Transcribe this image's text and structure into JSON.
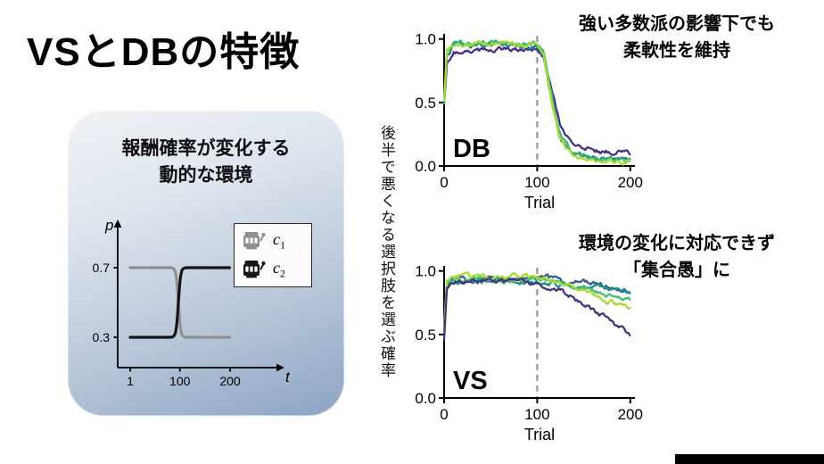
{
  "title": "VSとDBの特徴",
  "env_box": {
    "line1": "報酬確率が変化する",
    "line2": "動的な環境"
  },
  "vertical_axis_label": "後半で悪くなる選択肢を選ぶ確率",
  "annotations": {
    "db_line1": "強い多数派の影響下でも",
    "db_line2": "柔軟性を維持",
    "vs_line1": "環境の変化に対応できず",
    "vs_line2": "「集合愚」に"
  },
  "chart_data": [
    {
      "id": "reward-schedule",
      "type": "line",
      "title": "報酬確率が変化する動的な環境",
      "xlabel": "t",
      "ylabel": "p",
      "xticks": [
        1,
        100,
        200
      ],
      "yticks": [
        0.3,
        0.7
      ],
      "xlim": [
        1,
        200
      ],
      "ylim": [
        0.1,
        0.9
      ],
      "change_point": 100,
      "grid": false,
      "legend_position": "upper right",
      "legend": [
        {
          "base": "c",
          "sub": "1",
          "color": "#8f8f8f",
          "icon": "slot-machine-icon"
        },
        {
          "base": "c",
          "sub": "2",
          "color": "#161616",
          "icon": "slot-machine-icon"
        }
      ],
      "series": [
        {
          "name": "c1",
          "color": "#909090",
          "p_before": 0.7,
          "p_after": 0.3
        },
        {
          "name": "c2",
          "color": "#141414",
          "p_before": 0.3,
          "p_after": 0.7
        }
      ]
    },
    {
      "id": "db",
      "type": "line",
      "panel_label": "DB",
      "xlabel": "Trial",
      "xticks": [
        0,
        100,
        200
      ],
      "yticks": [
        0,
        0.5,
        1
      ],
      "xlim": [
        0,
        205
      ],
      "ylim": [
        0,
        1.04
      ],
      "vline_x": 100,
      "grid": false,
      "annotation": "強い多数派の影響下でも柔軟性を維持",
      "series": [
        {
          "name": "db-run-purple",
          "color": "#46327e",
          "x": [
            0,
            3,
            10,
            50,
            100,
            107,
            115,
            125,
            140,
            160,
            200
          ],
          "y": [
            0.5,
            0.8,
            0.9,
            0.92,
            0.92,
            0.86,
            0.6,
            0.3,
            0.15,
            0.12,
            0.1
          ]
        },
        {
          "name": "db-run-teal",
          "color": "#2a788e",
          "x": [
            0,
            3,
            10,
            50,
            100,
            107,
            115,
            125,
            140,
            160,
            200
          ],
          "y": [
            0.55,
            0.87,
            0.94,
            0.95,
            0.95,
            0.88,
            0.55,
            0.22,
            0.08,
            0.06,
            0.05
          ]
        },
        {
          "name": "db-run-green",
          "color": "#35b779",
          "x": [
            0,
            3,
            10,
            50,
            100,
            107,
            115,
            125,
            140,
            160,
            200
          ],
          "y": [
            0.48,
            0.9,
            0.96,
            0.97,
            0.96,
            0.9,
            0.58,
            0.25,
            0.09,
            0.06,
            0.05
          ]
        },
        {
          "name": "db-run-lime",
          "color": "#a5db36",
          "x": [
            0,
            3,
            10,
            50,
            100,
            107,
            115,
            125,
            140,
            160,
            200
          ],
          "y": [
            0.52,
            0.92,
            0.95,
            0.96,
            0.96,
            0.89,
            0.52,
            0.2,
            0.07,
            0.05,
            0.04
          ]
        }
      ]
    },
    {
      "id": "vs",
      "type": "line",
      "panel_label": "VS",
      "xlabel": "Trial",
      "xticks": [
        0,
        100,
        200
      ],
      "yticks": [
        0,
        0.5,
        1
      ],
      "xlim": [
        0,
        205
      ],
      "ylim": [
        0,
        1.04
      ],
      "vline_x": 100,
      "grid": false,
      "annotation": "環境の変化に対応できず「集合愚」に",
      "series": [
        {
          "name": "vs-run-blue",
          "color": "#365c8d",
          "x": [
            0,
            3,
            10,
            50,
            100,
            125,
            150,
            175,
            200
          ],
          "y": [
            0.6,
            0.88,
            0.93,
            0.94,
            0.95,
            0.93,
            0.91,
            0.88,
            0.84
          ]
        },
        {
          "name": "vs-run-teal",
          "color": "#21918c",
          "x": [
            0,
            3,
            10,
            50,
            100,
            125,
            150,
            175,
            200
          ],
          "y": [
            0.55,
            0.85,
            0.9,
            0.91,
            0.92,
            0.9,
            0.88,
            0.86,
            0.85
          ]
        },
        {
          "name": "vs-run-green",
          "color": "#44bf70",
          "x": [
            0,
            3,
            10,
            50,
            100,
            125,
            150,
            175,
            200
          ],
          "y": [
            0.5,
            0.9,
            0.92,
            0.93,
            0.93,
            0.9,
            0.86,
            0.81,
            0.78
          ]
        },
        {
          "name": "vs-run-lime",
          "color": "#a5db36",
          "x": [
            0,
            3,
            10,
            50,
            100,
            125,
            150,
            175,
            200
          ],
          "y": [
            0.52,
            0.93,
            0.95,
            0.96,
            0.95,
            0.91,
            0.84,
            0.77,
            0.72
          ]
        },
        {
          "name": "vs-run-purple",
          "color": "#46327e",
          "x": [
            0,
            3,
            10,
            50,
            100,
            125,
            150,
            175,
            200
          ],
          "y": [
            0.45,
            0.88,
            0.91,
            0.92,
            0.9,
            0.85,
            0.74,
            0.62,
            0.5
          ]
        }
      ]
    }
  ]
}
